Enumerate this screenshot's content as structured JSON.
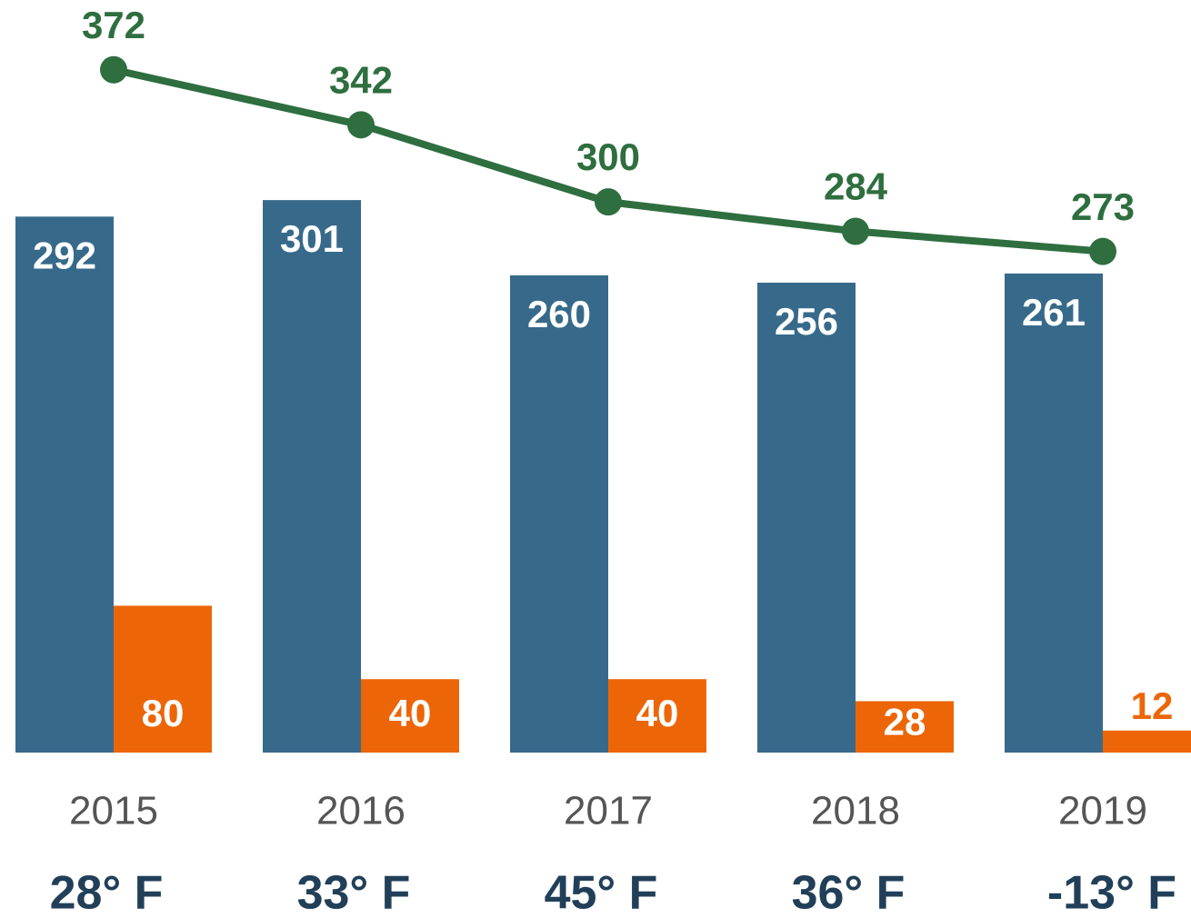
{
  "chart_data": {
    "type": "bar_line",
    "categories": [
      "2015",
      "2016",
      "2017",
      "2018",
      "2019"
    ],
    "sublabels": [
      "28° F",
      "33° F",
      "45° F",
      "36° F",
      "-13° F"
    ],
    "series": [
      {
        "type": "bar",
        "color": "#376a8a",
        "values": [
          292,
          301,
          260,
          256,
          261
        ]
      },
      {
        "type": "bar",
        "color": "#ec6608",
        "values": [
          80,
          40,
          40,
          28,
          12
        ]
      },
      {
        "type": "line",
        "color": "#2e6e3f",
        "values": [
          372,
          342,
          300,
          284,
          273
        ]
      }
    ],
    "ylim": [
      0,
      410
    ]
  }
}
